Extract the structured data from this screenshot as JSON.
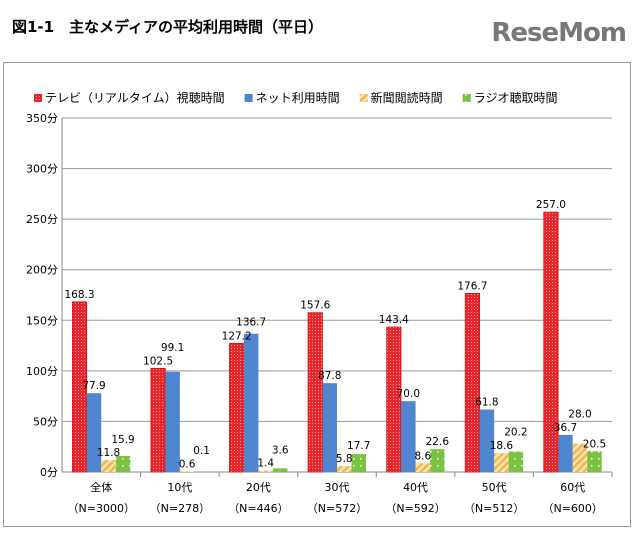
{
  "title": "図1-1　主なメディアの平均利用時間（平日）",
  "watermark": "ReseMom",
  "chart_data": {
    "type": "bar",
    "categories": [
      "全体",
      "10代",
      "20代",
      "30代",
      "40代",
      "50代",
      "60代"
    ],
    "category_sublabels": [
      "（N=3000）",
      "（N=278）",
      "（N=446）",
      "（N=572）",
      "（N=592）",
      "（N=512）",
      "（N=600）"
    ],
    "series": [
      {
        "name": "テレビ（リアルタイム）視聴時間",
        "color": "#e8262c",
        "values": [
          168.3,
          102.5,
          127.2,
          157.6,
          143.4,
          176.7,
          257.0
        ]
      },
      {
        "name": "ネット利用時間",
        "color": "#4f86cf",
        "values": [
          77.9,
          99.1,
          136.7,
          87.8,
          70.0,
          61.8,
          36.7
        ]
      },
      {
        "name": "新聞閲読時間",
        "color": "#f3c56a",
        "values": [
          11.8,
          0.6,
          1.4,
          5.8,
          8.6,
          18.6,
          28.0
        ]
      },
      {
        "name": "ラジオ聴取時間",
        "color": "#7cc242",
        "values": [
          15.9,
          0.1,
          3.6,
          17.7,
          22.6,
          20.2,
          20.5
        ]
      }
    ],
    "ylim": [
      0,
      350
    ],
    "yticks": [
      0,
      50,
      100,
      150,
      200,
      250,
      300,
      350
    ],
    "ytick_suffix": "分",
    "grid": true,
    "legend": "top"
  }
}
